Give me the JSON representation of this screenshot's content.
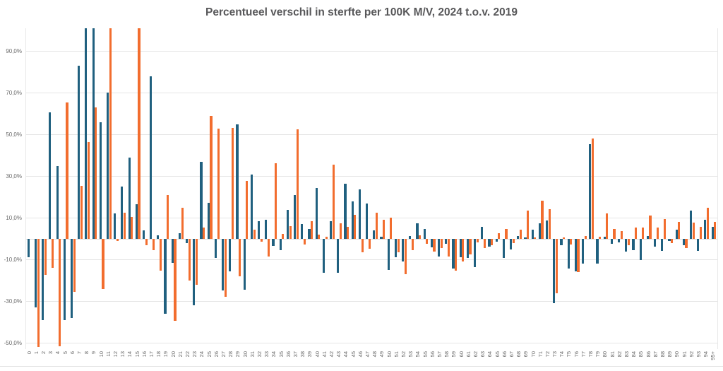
{
  "title": "Percentueel verschil in sterfte per 100K M/V, 2024 t.o.v. 2019",
  "colors": {
    "male_bar": "#20607F",
    "female_bar": "#F26D2E",
    "grid": "#e5e5e5",
    "tick_text": "#6a6a6a",
    "title_text": "#58585a"
  },
  "chart_data": {
    "type": "bar",
    "title": "Percentueel verschil in sterfte per 100K M/V, 2024 t.o.v. 2019",
    "xlabel": "",
    "ylabel": "",
    "legend": "none",
    "grid": true,
    "ylim": [
      -53,
      101
    ],
    "yticks": [
      {
        "value": 90,
        "label": "90,0%"
      },
      {
        "value": 70,
        "label": "70,0%"
      },
      {
        "value": 50,
        "label": "50,0%"
      },
      {
        "value": 30,
        "label": "30,0%"
      },
      {
        "value": 10,
        "label": "10,0%"
      },
      {
        "value": -10,
        "label": "-10,0%"
      },
      {
        "value": -30,
        "label": "-30,0%"
      },
      {
        "value": -50,
        "label": "-50,0%"
      }
    ],
    "categories": [
      "0",
      "1",
      "2",
      "3",
      "4",
      "5",
      "6",
      "7",
      "8",
      "9",
      "10",
      "11",
      "12",
      "13",
      "14",
      "15",
      "16",
      "17",
      "18",
      "19",
      "20",
      "21",
      "22",
      "23",
      "24",
      "25",
      "26",
      "27",
      "28",
      "29",
      "30",
      "31",
      "32",
      "33",
      "34",
      "35",
      "36",
      "37",
      "38",
      "39",
      "40",
      "41",
      "42",
      "43",
      "44",
      "45",
      "46",
      "47",
      "48",
      "49",
      "50",
      "51",
      "52",
      "53",
      "54",
      "55",
      "56",
      "57",
      "58",
      "59",
      "60",
      "61",
      "62",
      "63",
      "64",
      "65",
      "66",
      "67",
      "68",
      "69",
      "70",
      "71",
      "72",
      "73",
      "74",
      "75",
      "76",
      "77",
      "78",
      "79",
      "80",
      "81",
      "82",
      "83",
      "84",
      "85",
      "86",
      "87",
      "88",
      "89",
      "90",
      "91",
      "92",
      "93",
      "94",
      "95+"
    ],
    "series": [
      {
        "name": "M",
        "color": "#20607F",
        "values": [
          -9,
          -33,
          -39,
          60.5,
          35,
          -39,
          -38,
          83,
          101,
          101,
          56,
          70,
          12,
          25,
          39,
          16.5,
          4,
          78,
          1.5,
          -36,
          -11.5,
          2.5,
          -2.2,
          -32,
          37,
          17.3,
          -9.4,
          -25,
          -15.7,
          55,
          -24.4,
          30.7,
          8.3,
          9,
          -3.4,
          -5.5,
          14,
          20.9,
          7,
          4.6,
          24.2,
          -16.4,
          8.4,
          -16.2,
          26.5,
          18,
          23.7,
          16.9,
          4.1,
          0.8,
          -15,
          -8.9,
          -11.1,
          1.4,
          7.4,
          4.7,
          -4,
          -8.5,
          -2.5,
          -14.5,
          -8.9,
          -9.1,
          -13.6,
          5.6,
          -3.7,
          -1.4,
          -9.1,
          -5.1,
          1.3,
          0.7,
          4.5,
          7.5,
          8.6,
          -30.8,
          -3.2,
          -14.5,
          -15.7,
          -11.9,
          45.4,
          -11.9,
          0.8,
          -2.5,
          -1.8,
          -6.3,
          -5.5,
          -10.2,
          1.3,
          -3.7,
          -5.9,
          -1,
          4.5,
          -3.2,
          13.5,
          -5.9,
          9.2,
          5.8
        ]
      },
      {
        "name": "V",
        "color": "#F26D2E",
        "values": [
          0,
          -52,
          -17.5,
          -14,
          -51.5,
          65.5,
          -25.5,
          25.5,
          46.5,
          63,
          -24,
          101,
          -1,
          12.5,
          10.5,
          101,
          -3,
          -5.5,
          -15.5,
          21,
          -39.5,
          15,
          -20,
          -22,
          5.3,
          59,
          53,
          -28,
          53.3,
          -18,
          27.9,
          4.3,
          -1.4,
          -8.5,
          36.1,
          2.4,
          6.2,
          52.5,
          -2.9,
          8.5,
          2,
          1.1,
          35.5,
          7.5,
          5.8,
          11.5,
          -6.6,
          -4.8,
          12.4,
          9.2,
          10.1,
          -6.4,
          -17.2,
          -5.6,
          1.6,
          -2.3,
          -6.3,
          -4.6,
          -8.5,
          -15.3,
          -10.8,
          -7.7,
          -1.8,
          -4.4,
          -3.2,
          2.8,
          4.7,
          -2.1,
          4.2,
          13.5,
          0.5,
          18.3,
          14.1,
          -26.3,
          0.7,
          -2.9,
          -16.1,
          1.3,
          48,
          1.1,
          12,
          4.7,
          3.6,
          -3.2,
          5.4,
          5.4,
          11.2,
          5.4,
          9.5,
          -2.1,
          8.1,
          -4.4,
          7.7,
          5.8,
          15,
          8.1
        ]
      }
    ],
    "note": "Bars stored as 101 reach the top of the plot area and are clipped (actual value >= 100%)."
  }
}
